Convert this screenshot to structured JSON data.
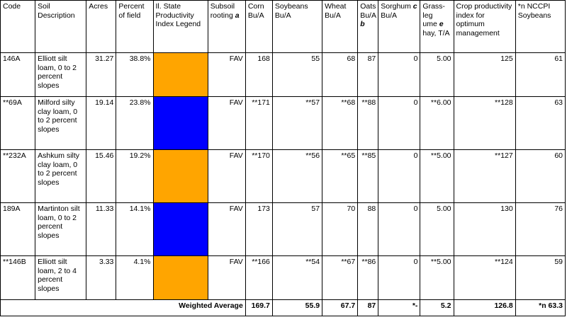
{
  "headers": {
    "code": "Code",
    "desc": "Soil Description",
    "acres": "Acres",
    "pct": "Percent of field",
    "legend": "Il. State Productivity Index Legend",
    "subsoil": "Subsoil rooting",
    "subsoil_note": "a",
    "corn": "Corn Bu/A",
    "soy": "Soybeans Bu/A",
    "wheat": "Wheat Bu/A",
    "oats": "Oats Bu/A",
    "oats_note": "b",
    "sorghum": "Sorghum",
    "sorghum_note": "c",
    "sorghum_unit": "Bu/A",
    "grass_a": "Grass-leg",
    "grass_b": "ume",
    "grass_note": "e",
    "grass_c": "hay, T/A",
    "cpi": "Crop productivity index for optimum management",
    "nccpi": "*n NCCPI Soybeans"
  },
  "colors": {
    "orange": "#FFA500",
    "blue": "#0000FF"
  },
  "rows": [
    {
      "code": "146A",
      "desc": "Elliott silt loam, 0 to 2 percent slopes",
      "acres": "31.27",
      "pct": "38.8%",
      "color": "orange",
      "subsoil": "FAV",
      "corn": "168",
      "soy": "55",
      "wheat": "68",
      "oats": "87",
      "sorghum": "0",
      "grass": "5.00",
      "cpi": "125",
      "nccpi": "61"
    },
    {
      "code": "**69A",
      "desc": "Milford silty clay loam, 0 to 2 percent slopes",
      "acres": "19.14",
      "pct": "23.8%",
      "color": "blue",
      "subsoil": "FAV",
      "corn": "**171",
      "soy": "**57",
      "wheat": "**68",
      "oats": "**88",
      "sorghum": "0",
      "grass": "**6.00",
      "cpi": "**128",
      "nccpi": "63"
    },
    {
      "code": "**232A",
      "desc": "Ashkum silty clay loam, 0 to 2 percent slopes",
      "acres": "15.46",
      "pct": "19.2%",
      "color": "orange",
      "subsoil": "FAV",
      "corn": "**170",
      "soy": "**56",
      "wheat": "**65",
      "oats": "**85",
      "sorghum": "0",
      "grass": "**5.00",
      "cpi": "**127",
      "nccpi": "60"
    },
    {
      "code": "189A",
      "desc": "Martinton silt loam, 0 to 2 percent slopes",
      "acres": "11.33",
      "pct": "14.1%",
      "color": "blue",
      "subsoil": "FAV",
      "corn": "173",
      "soy": "57",
      "wheat": "70",
      "oats": "88",
      "sorghum": "0",
      "grass": "5.00",
      "cpi": "130",
      "nccpi": "76"
    },
    {
      "code": "**146B",
      "desc": "Elliott silt loam, 2 to 4 percent slopes",
      "acres": "3.33",
      "pct": "4.1%",
      "color": "orange",
      "subsoil": "FAV",
      "corn": "**166",
      "soy": "**54",
      "wheat": "**67",
      "oats": "**86",
      "sorghum": "0",
      "grass": "**5.00",
      "cpi": "**124",
      "nccpi": "59"
    }
  ],
  "totals": {
    "label": "Weighted Average",
    "corn": "169.7",
    "soy": "55.9",
    "wheat": "67.7",
    "oats": "87",
    "sorghum": "*-",
    "grass": "5.2",
    "cpi": "126.8",
    "nccpi": "*n 63.3"
  }
}
